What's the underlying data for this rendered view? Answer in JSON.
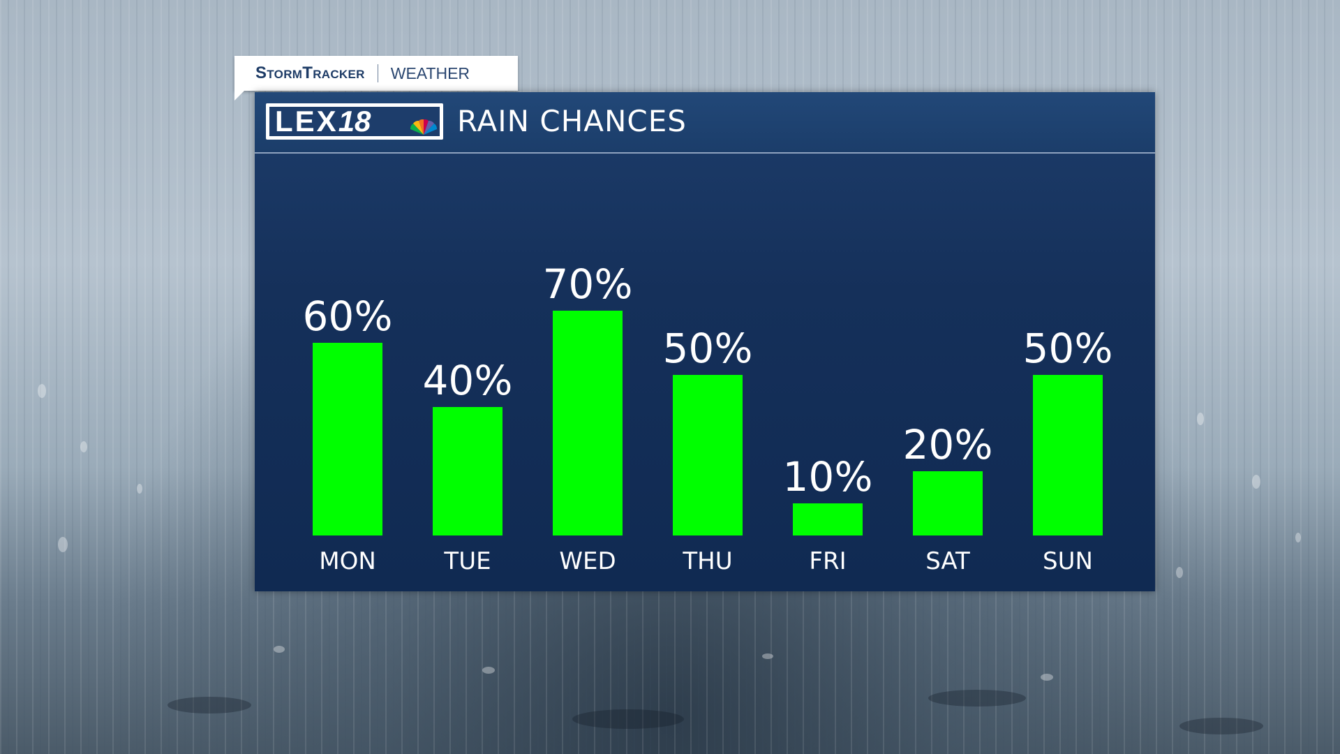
{
  "tag": {
    "brand": "StormTracker",
    "sub": "WEATHER"
  },
  "header": {
    "logo_text": "LEX",
    "logo_num": "18",
    "title": "RAIN CHANCES"
  },
  "colors": {
    "bar": "#00ff00",
    "panel": "#15305a",
    "header": "#1d3f6e",
    "text": "#ffffff"
  },
  "chart_data": {
    "type": "bar",
    "categories": [
      "MON",
      "TUE",
      "WED",
      "THU",
      "FRI",
      "SAT",
      "SUN"
    ],
    "values": [
      60,
      40,
      70,
      50,
      10,
      20,
      50
    ],
    "value_labels": [
      "60%",
      "40%",
      "70%",
      "50%",
      "10%",
      "20%",
      "50%"
    ],
    "ylim": [
      0,
      100
    ],
    "grid": false,
    "legend": "none"
  }
}
